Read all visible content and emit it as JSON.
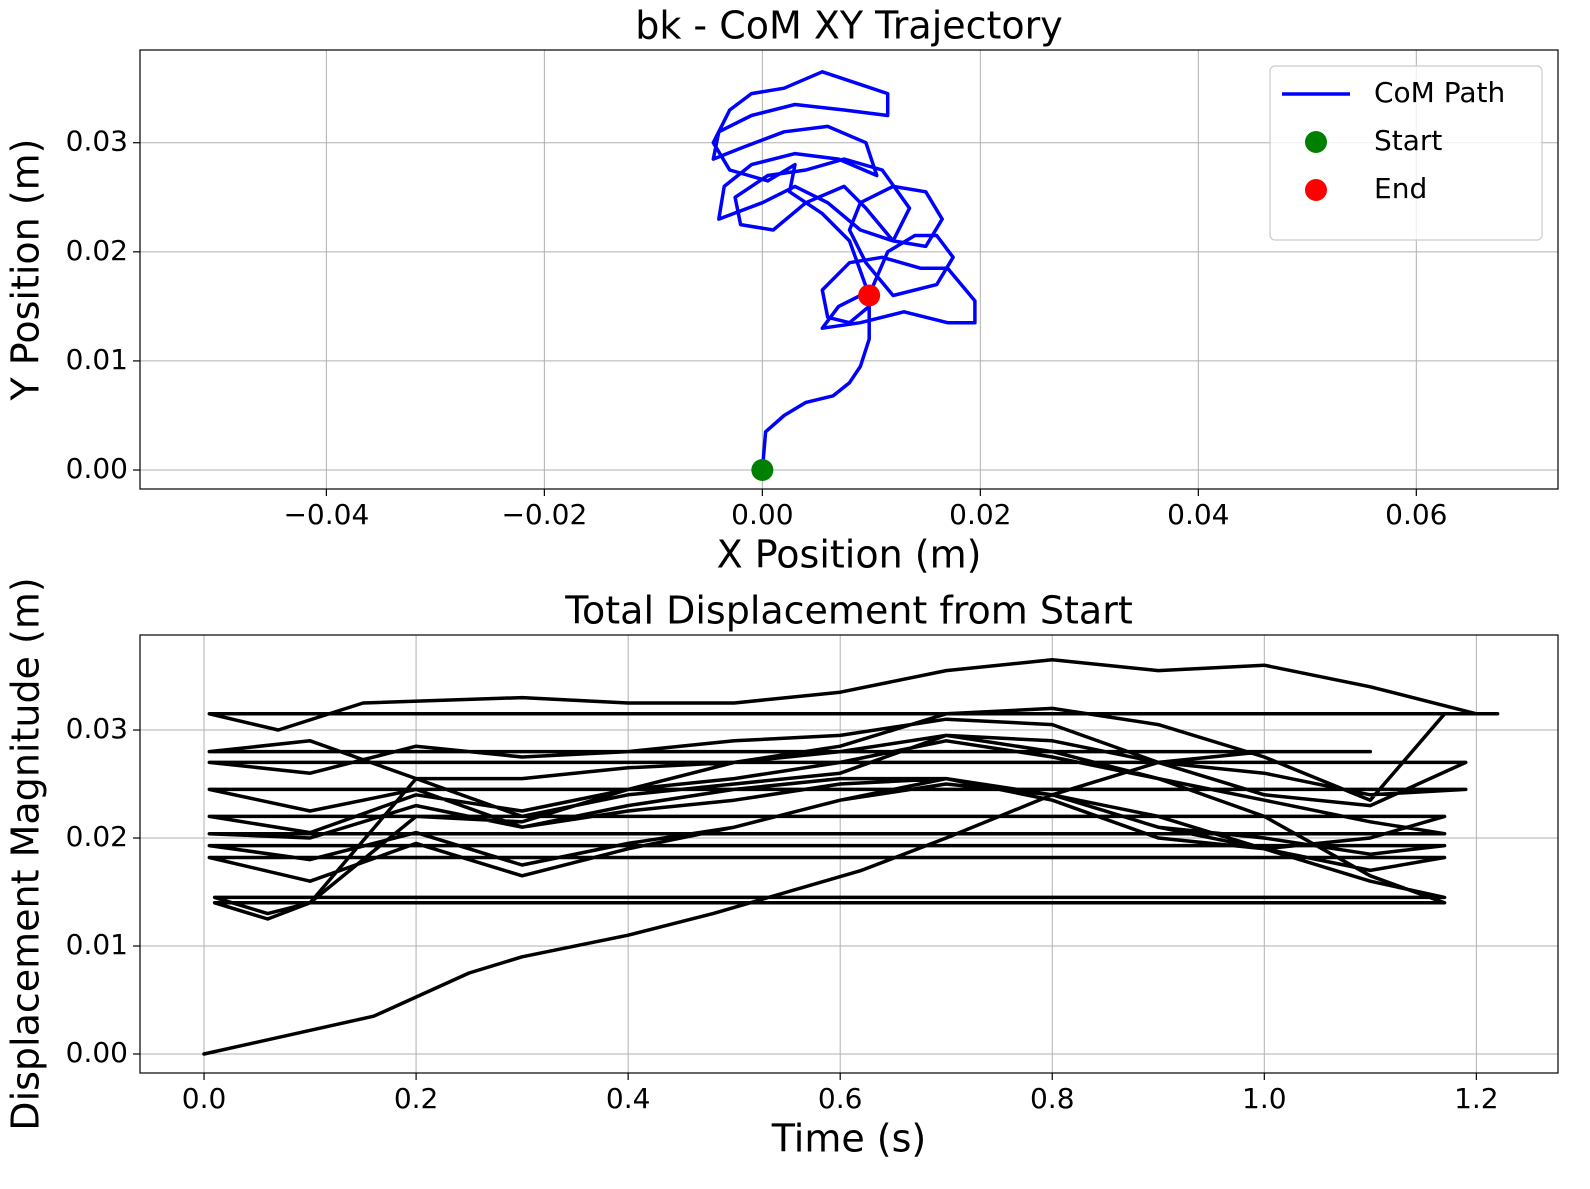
{
  "chart_data": [
    {
      "type": "line",
      "title": "bk - CoM XY Trajectory",
      "xlabel": "X Position (m)",
      "ylabel": "Y Position (m)",
      "xlim": [
        -0.0571,
        0.073
      ],
      "ylim": [
        -0.00174,
        0.0385
      ],
      "xticks": [
        {
          "value": -0.04,
          "label": "−0.04"
        },
        {
          "value": -0.02,
          "label": "−0.02"
        },
        {
          "value": 0,
          "label": "0.00"
        },
        {
          "value": 0.02,
          "label": "0.02"
        },
        {
          "value": 0.04,
          "label": "0.04"
        },
        {
          "value": 0.06,
          "label": "0.06"
        }
      ],
      "yticks": [
        {
          "value": 0,
          "label": "0.00"
        },
        {
          "value": 0.01,
          "label": "0.01"
        },
        {
          "value": 0.02,
          "label": "0.02"
        },
        {
          "value": 0.03,
          "label": "0.03"
        }
      ],
      "grid": true,
      "legend": "upper right",
      "series": [
        {
          "name": "CoM Path",
          "color": "#0000ff",
          "style": "line",
          "x": [
            0,
            0.0003,
            0.002,
            0.004,
            0.0065,
            0.008,
            0.009,
            0.0098,
            0.0098,
            0.008,
            0.006,
            0.0055,
            0.008,
            0.011,
            0.0145,
            0.017,
            0.0195,
            0.0195,
            0.017,
            0.013,
            0.009,
            0.0055,
            0.007,
            0.01,
            0.0115,
            0.014,
            0.016,
            0.0175,
            0.016,
            0.012,
            0.0095,
            0.008,
            0.009,
            0.012,
            0.015,
            0.0165,
            0.015,
            0.012,
            0.0095,
            0.0075,
            0.004,
            0.001,
            -0.002,
            -0.0025,
            0.0005,
            0.004,
            0.0075,
            0.011,
            0.0135,
            0.012,
            0.009,
            0.006,
            0.003,
            0,
            -0.004,
            -0.0035,
            -0.001,
            0.003,
            0.007,
            0.0105,
            0.0095,
            0.006,
            0.002,
            -0.002,
            -0.0045,
            -0.004,
            -0.001,
            0.003,
            0.0075,
            0.0115,
            0.0115,
            0.0085,
            0.0055,
            0.002,
            -0.001,
            -0.003,
            -0.0045,
            -0.003,
            0.0005,
            0.003,
            0.0025,
            0.0055,
            0.008,
            0.0098
          ],
          "values": [
            0,
            0.0035,
            0.005,
            0.0062,
            0.0068,
            0.008,
            0.0095,
            0.012,
            0.015,
            0.0135,
            0.014,
            0.0165,
            0.019,
            0.0195,
            0.0185,
            0.0185,
            0.0155,
            0.0135,
            0.0135,
            0.0145,
            0.0135,
            0.013,
            0.015,
            0.0165,
            0.02,
            0.0215,
            0.0215,
            0.0195,
            0.017,
            0.016,
            0.019,
            0.022,
            0.0245,
            0.026,
            0.0255,
            0.023,
            0.0205,
            0.021,
            0.024,
            0.026,
            0.0245,
            0.022,
            0.0225,
            0.025,
            0.027,
            0.0275,
            0.0285,
            0.0275,
            0.024,
            0.021,
            0.022,
            0.0245,
            0.026,
            0.0245,
            0.023,
            0.026,
            0.028,
            0.029,
            0.0285,
            0.027,
            0.03,
            0.0315,
            0.031,
            0.0295,
            0.0285,
            0.031,
            0.0325,
            0.0335,
            0.033,
            0.0325,
            0.0345,
            0.0355,
            0.0365,
            0.035,
            0.0345,
            0.033,
            0.03,
            0.0275,
            0.0265,
            0.028,
            0.0255,
            0.0235,
            0.021,
            0.016
          ]
        },
        {
          "name": "Start",
          "color": "#008000",
          "style": "marker",
          "x": [
            0
          ],
          "values": [
            0
          ]
        },
        {
          "name": "End",
          "color": "#ff0000",
          "style": "marker",
          "x": [
            0.0098
          ],
          "values": [
            0.016
          ]
        }
      ]
    },
    {
      "type": "line",
      "title": "Total Displacement from Start",
      "xlabel": "Time (s)",
      "ylabel": "Displacement Magnitude (m)",
      "xlim": [
        -0.0604,
        1.277
      ],
      "ylim": [
        -0.00176,
        0.0388
      ],
      "xticks": [
        {
          "value": 0,
          "label": "0.0"
        },
        0.2,
        0.4,
        0.6,
        0.8,
        {
          "value": 1,
          "label": "1.0"
        },
        1.2
      ],
      "yticks": [
        {
          "value": 0,
          "label": "0.00"
        },
        {
          "value": 0.01,
          "label": "0.01"
        },
        {
          "value": 0.02,
          "label": "0.02"
        },
        {
          "value": 0.03,
          "label": "0.03"
        }
      ],
      "grid": true,
      "color": "#000000",
      "x": [
        0,
        0.16,
        0.25,
        0.3,
        0.4,
        0.48,
        0.55,
        0.62,
        0.7,
        0.8,
        0.9,
        1.0,
        1.1,
        0.005,
        0.1,
        0.2,
        0.3,
        0.4,
        0.5,
        0.6,
        0.7,
        0.8,
        0.9,
        1.0,
        1.1,
        1.19,
        0.005,
        0.1,
        0.2,
        0.3,
        0.4,
        0.5,
        0.6,
        0.7,
        0.8,
        0.9,
        1.0,
        1.1,
        1.19,
        0.005,
        0.1,
        0.2,
        0.3,
        0.4,
        0.5,
        0.6,
        0.7,
        0.8,
        0.9,
        1.0,
        1.1,
        1.17,
        0.005,
        0.1,
        0.2,
        0.3,
        0.4,
        0.5,
        0.6,
        0.7,
        0.8,
        0.9,
        1.0,
        1.1,
        1.17,
        0.005,
        0.1,
        0.2,
        0.3,
        0.4,
        0.5,
        0.6,
        0.7,
        0.8,
        0.9,
        1.0,
        1.1,
        1.17,
        0.005,
        0.1,
        0.2,
        0.3,
        0.4,
        0.5,
        0.6,
        0.7,
        0.8,
        0.9,
        1.0,
        1.1,
        1.17,
        0.005,
        0.1,
        0.2,
        0.3,
        0.4,
        0.5,
        0.6,
        0.7,
        0.8,
        0.9,
        1.0,
        1.1,
        1.17,
        0.01,
        0.06,
        0.1,
        0.2,
        0.3,
        0.4,
        0.5,
        0.6,
        0.7,
        0.8,
        0.9,
        1.0,
        1.1,
        1.17,
        0.01,
        0.06,
        0.1,
        0.2,
        0.3,
        0.4,
        0.5,
        0.6,
        0.7,
        0.8,
        0.9,
        1.0,
        1.1,
        1.17,
        0.005,
        0.07,
        0.15,
        0.3,
        0.4,
        0.5,
        0.6,
        0.7,
        0.8,
        0.9,
        1.0,
        1.1,
        1.2,
        1.22,
        0.005
      ],
      "values": [
        0,
        0.0035,
        0.0075,
        0.009,
        0.011,
        0.013,
        0.015,
        0.017,
        0.02,
        0.024,
        0.027,
        0.028,
        0.028,
        0.028,
        0.029,
        0.0255,
        0.022,
        0.024,
        0.025,
        0.026,
        0.0295,
        0.029,
        0.027,
        0.024,
        0.023,
        0.027,
        0.027,
        0.026,
        0.0285,
        0.0275,
        0.028,
        0.029,
        0.0295,
        0.031,
        0.0305,
        0.027,
        0.026,
        0.024,
        0.0245,
        0.0245,
        0.0225,
        0.0245,
        0.021,
        0.023,
        0.0245,
        0.0255,
        0.0255,
        0.024,
        0.022,
        0.019,
        0.02,
        0.022,
        0.022,
        0.0205,
        0.024,
        0.0225,
        0.0245,
        0.027,
        0.028,
        0.0295,
        0.028,
        0.0255,
        0.0235,
        0.0215,
        0.0204,
        0.0204,
        0.02,
        0.023,
        0.021,
        0.0225,
        0.0235,
        0.025,
        0.0255,
        0.024,
        0.021,
        0.02,
        0.0185,
        0.0193,
        0.0193,
        0.018,
        0.0205,
        0.0175,
        0.0195,
        0.021,
        0.0235,
        0.0255,
        0.0235,
        0.02,
        0.019,
        0.017,
        0.0182,
        0.0182,
        0.016,
        0.0195,
        0.0165,
        0.019,
        0.021,
        0.0235,
        0.025,
        0.024,
        0.021,
        0.019,
        0.016,
        0.0145,
        0.0145,
        0.013,
        0.014,
        0.022,
        0.0215,
        0.0245,
        0.0255,
        0.027,
        0.029,
        0.0275,
        0.0255,
        0.022,
        0.0165,
        0.014,
        0.014,
        0.0125,
        0.014,
        0.0255,
        0.0255,
        0.0265,
        0.027,
        0.0285,
        0.0315,
        0.032,
        0.0305,
        0.0275,
        0.0235,
        0.0315,
        0.0315,
        0.03,
        0.0325,
        0.033,
        0.0325,
        0.0325,
        0.0335,
        0.0355,
        0.0365,
        0.0355,
        0.036,
        0.034,
        0.0315,
        0.0315,
        0.0315
      ]
    }
  ]
}
